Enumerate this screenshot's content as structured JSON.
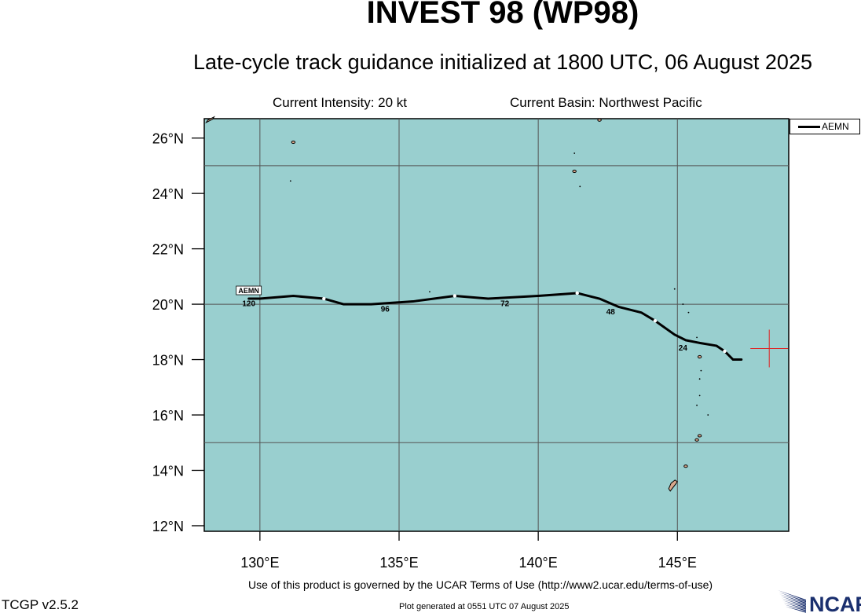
{
  "header": {
    "title": "INVEST 98 (WP98)",
    "subtitle": "Late-cycle track guidance initialized at 1800 UTC, 06 August 2025",
    "current_intensity": "Current Intensity: 20 kt",
    "current_basin": "Current Basin: Northwest Pacific"
  },
  "map": {
    "lon_range": [
      128,
      149
    ],
    "lat_range": [
      11.8,
      26.7
    ],
    "lon_ticks": [
      130,
      135,
      140,
      145
    ],
    "lon_tick_labels": [
      "130°E",
      "135°E",
      "140°E",
      "145°E"
    ],
    "lat_ticks": [
      12,
      14,
      16,
      18,
      20,
      22,
      24,
      26
    ],
    "lat_tick_labels": [
      "12°N",
      "14°N",
      "16°N",
      "18°N",
      "20°N",
      "22°N",
      "24°N",
      "26°N"
    ],
    "grid_lons": [
      130,
      135,
      140,
      145
    ],
    "grid_lats": [
      15,
      20,
      25
    ],
    "ocean_color": "#99cfcf",
    "land_color": "#d9a88c",
    "current_position": {
      "lon": 148.3,
      "lat": 18.4,
      "marker_color": "#e02020"
    }
  },
  "track": {
    "model": "AEMN",
    "color": "#000000",
    "points": [
      {
        "lon": 147.3,
        "lat": 18.0
      },
      {
        "lon": 147.0,
        "lat": 18.0
      },
      {
        "lon": 146.7,
        "lat": 18.3
      },
      {
        "lon": 146.4,
        "lat": 18.5
      },
      {
        "lon": 145.8,
        "lat": 18.6
      },
      {
        "lon": 145.3,
        "lat": 18.7
      },
      {
        "lon": 144.9,
        "lat": 18.9
      },
      {
        "lon": 144.2,
        "lat": 19.4
      },
      {
        "lon": 143.7,
        "lat": 19.7
      },
      {
        "lon": 142.9,
        "lat": 19.9
      },
      {
        "lon": 142.2,
        "lat": 20.2
      },
      {
        "lon": 141.4,
        "lat": 20.4
      },
      {
        "lon": 140.0,
        "lat": 20.3
      },
      {
        "lon": 138.2,
        "lat": 20.2
      },
      {
        "lon": 137.0,
        "lat": 20.3
      },
      {
        "lon": 135.5,
        "lat": 20.1
      },
      {
        "lon": 134.0,
        "lat": 20.0
      },
      {
        "lon": 133.0,
        "lat": 20.0
      },
      {
        "lon": 132.3,
        "lat": 20.2
      },
      {
        "lon": 131.2,
        "lat": 20.3
      },
      {
        "lon": 130.0,
        "lat": 20.2
      },
      {
        "lon": 129.6,
        "lat": 20.2
      }
    ],
    "markers": [
      {
        "lon": 146.7,
        "lat": 18.3
      },
      {
        "lon": 144.2,
        "lat": 19.4
      },
      {
        "lon": 141.4,
        "lat": 20.4
      },
      {
        "lon": 137.0,
        "lat": 20.3
      },
      {
        "lon": 132.3,
        "lat": 20.2
      }
    ],
    "hour_labels": [
      {
        "text": "24",
        "lon": 145.2,
        "lat": 18.5
      },
      {
        "text": "48",
        "lon": 142.6,
        "lat": 19.8
      },
      {
        "text": "72",
        "lon": 138.8,
        "lat": 20.1
      },
      {
        "text": "96",
        "lon": 134.5,
        "lat": 19.9
      },
      {
        "text": "120",
        "lon": 129.6,
        "lat": 20.1
      }
    ],
    "start_label": "AEMN"
  },
  "islands": [
    {
      "lon": 144.8,
      "lat": 13.45,
      "type": "guam"
    },
    {
      "lon": 145.3,
      "lat": 14.15,
      "type": "small"
    },
    {
      "lon": 145.7,
      "lat": 15.1,
      "type": "small"
    },
    {
      "lon": 145.8,
      "lat": 15.25,
      "type": "small"
    },
    {
      "lon": 145.7,
      "lat": 16.35,
      "type": "dot"
    },
    {
      "lon": 145.8,
      "lat": 16.7,
      "type": "dot"
    },
    {
      "lon": 145.8,
      "lat": 17.3,
      "type": "dot"
    },
    {
      "lon": 145.85,
      "lat": 17.6,
      "type": "dot"
    },
    {
      "lon": 145.8,
      "lat": 18.1,
      "type": "small"
    },
    {
      "lon": 145.7,
      "lat": 18.8,
      "type": "dot"
    },
    {
      "lon": 145.4,
      "lat": 19.7,
      "type": "dot"
    },
    {
      "lon": 145.2,
      "lat": 20.0,
      "type": "dot"
    },
    {
      "lon": 144.9,
      "lat": 20.55,
      "type": "dot"
    },
    {
      "lon": 146.1,
      "lat": 16.0,
      "type": "dot"
    },
    {
      "lon": 141.3,
      "lat": 24.8,
      "type": "small"
    },
    {
      "lon": 141.5,
      "lat": 24.25,
      "type": "dot"
    },
    {
      "lon": 141.3,
      "lat": 25.45,
      "type": "dot"
    },
    {
      "lon": 131.2,
      "lat": 25.85,
      "type": "small"
    },
    {
      "lon": 131.1,
      "lat": 24.45,
      "type": "dot"
    },
    {
      "lon": 136.1,
      "lat": 20.45,
      "type": "dot"
    },
    {
      "lon": 142.2,
      "lat": 26.65,
      "type": "small"
    },
    {
      "lon": 128.1,
      "lat": 26.65,
      "type": "okinawa"
    }
  ],
  "footer": {
    "disclaimer": "Use of this product is governed by the UCAR Terms of Use (http://www2.ucar.edu/terms-of-use)",
    "version": "TCGP v2.5.2",
    "plotted": "Plot generated at 0551 UTC   07 August 2025",
    "logo_text": "NCAR",
    "logo_color": "#1a2f6e"
  }
}
